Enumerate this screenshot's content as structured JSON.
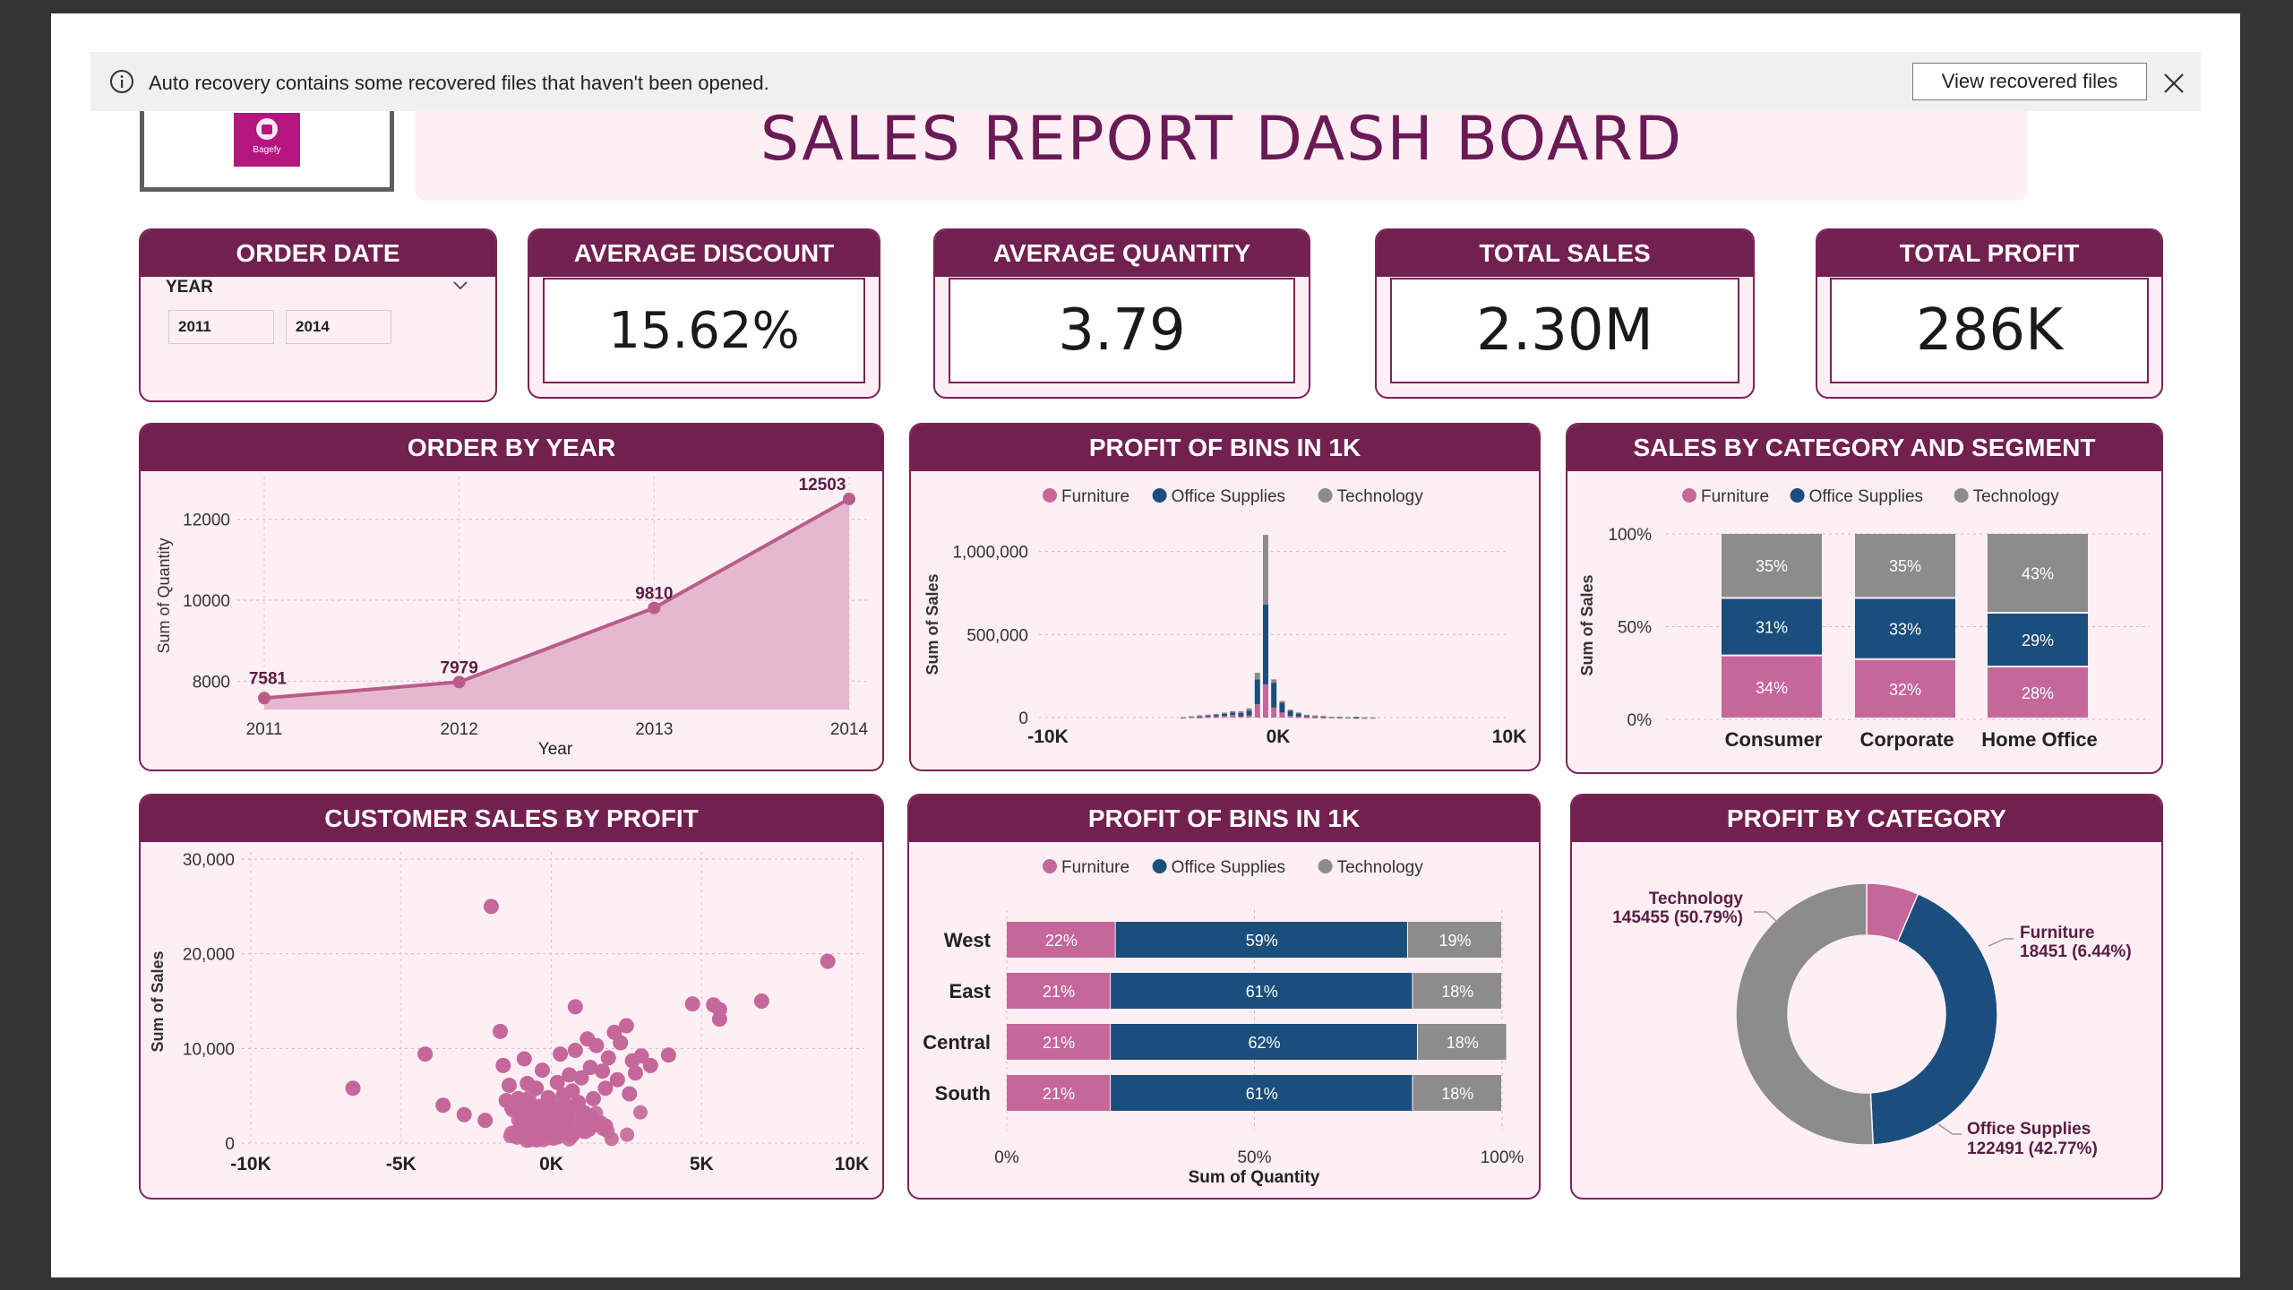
{
  "notification": {
    "message": "Auto recovery contains some recovered files that haven't been opened.",
    "button_label": "View recovered files",
    "info_icon": "info-icon",
    "close_icon": "close-icon"
  },
  "logo": {
    "text": "Bagefy"
  },
  "title": "SALES REPORT DASH BOARD",
  "order_date": {
    "header": "ORDER DATE",
    "label": "YEAR",
    "from": "2011",
    "to": "2014"
  },
  "kpis": {
    "avg_discount": {
      "header": "AVERAGE DISCOUNT",
      "value": "15.62%"
    },
    "avg_quantity": {
      "header": "AVERAGE QUANTITY",
      "value": "3.79"
    },
    "total_sales": {
      "header": "TOTAL SALES",
      "value": "2.30M"
    },
    "total_profit": {
      "header": "TOTAL PROFIT",
      "value": "286K"
    }
  },
  "legend": [
    "Furniture",
    "Office Supplies",
    "Technology"
  ],
  "colors": {
    "furniture": "#c5679a",
    "office": "#1a4e7c",
    "technology": "#8c8c8c",
    "header": "#72204f",
    "panel": "#fdeff3"
  },
  "chart_data": [
    {
      "type": "area",
      "title": "ORDER BY YEAR",
      "xlabel": "Year",
      "ylabel": "Sum of Quantity",
      "x": [
        "2011",
        "2012",
        "2013",
        "2014"
      ],
      "values": [
        7581,
        7979,
        9810,
        12503
      ],
      "labels": [
        "7581",
        "7979",
        "9810",
        "12503"
      ],
      "ylim": [
        7300,
        12700
      ],
      "yticks": [
        8000,
        10000,
        12000
      ],
      "ytick_labels": [
        "8000",
        "10000",
        "12000"
      ]
    },
    {
      "type": "bar",
      "title": "PROFIT OF BINS IN 1K",
      "ylabel": "Sum of Sales",
      "ylim": [
        0,
        1300000
      ],
      "yticks": [
        0,
        500000,
        1000000
      ],
      "ytick_labels": [
        "0",
        "500,000",
        "1,000,000"
      ],
      "xtick_labels": [
        "-10K",
        "0K",
        "10K"
      ],
      "series": [
        {
          "name": "Furniture",
          "values": [
            0,
            0,
            3000,
            5000,
            6000,
            10000,
            15000,
            8000,
            12000,
            80000,
            200000,
            60000,
            30000,
            10000,
            6000,
            4000,
            3000,
            2000,
            0,
            2000,
            0,
            1000,
            0,
            0
          ]
        },
        {
          "name": "Office Supplies",
          "values": [
            2000,
            6000,
            8000,
            10000,
            12000,
            14000,
            16000,
            20000,
            30000,
            150000,
            480000,
            150000,
            60000,
            30000,
            20000,
            10000,
            8000,
            6000,
            4000,
            3000,
            2000,
            2000,
            1000,
            0
          ]
        },
        {
          "name": "Technology",
          "values": [
            1000,
            2000,
            3000,
            3000,
            4000,
            6000,
            8000,
            10000,
            14000,
            40000,
            420000,
            20000,
            10000,
            8000,
            5000,
            3000,
            2000,
            2000,
            1000,
            1000,
            1000,
            0,
            1000,
            1000
          ]
        }
      ]
    },
    {
      "type": "bar",
      "title": "SALES BY CATEGORY AND SEGMENT",
      "ylabel": "Sum of Sales",
      "ytick_labels": [
        "0%",
        "50%",
        "100%"
      ],
      "categories": [
        "Consumer",
        "Corporate",
        "Home Office"
      ],
      "series": [
        {
          "name": "Furniture",
          "values": [
            34,
            32,
            28
          ]
        },
        {
          "name": "Office Supplies",
          "values": [
            31,
            33,
            29
          ]
        },
        {
          "name": "Technology",
          "values": [
            35,
            35,
            43
          ]
        }
      ],
      "labels": {
        "Furniture": [
          "34%",
          "32%",
          "28%"
        ],
        "Office Supplies": [
          "31%",
          "33%",
          "29%"
        ],
        "Technology": [
          "35%",
          "35%",
          "43%"
        ]
      }
    },
    {
      "type": "scatter",
      "title": "CUSTOMER SALES BY PROFIT",
      "ylabel": "Sum of Sales",
      "ylim": [
        0,
        30000
      ],
      "xlim": [
        -10000,
        10000
      ],
      "yticks": [
        0,
        10000,
        20000,
        30000
      ],
      "ytick_labels": [
        "0",
        "10,000",
        "20,000",
        "30,000"
      ],
      "xtick_labels": [
        "-10K",
        "-5K",
        "0K",
        "5K",
        "10K"
      ],
      "points": [
        [
          -6600,
          5800
        ],
        [
          -2000,
          25000
        ],
        [
          -4200,
          9400
        ],
        [
          -3600,
          4000
        ],
        [
          -2900,
          3000
        ],
        [
          -2200,
          2400
        ],
        [
          -1700,
          11800
        ],
        [
          -1600,
          8200
        ],
        [
          -1400,
          6100
        ],
        [
          -1100,
          4700
        ],
        [
          -900,
          8900
        ],
        [
          -700,
          3600
        ],
        [
          -500,
          5800
        ],
        [
          -300,
          7700
        ],
        [
          -100,
          4800
        ],
        [
          0,
          2100
        ],
        [
          100,
          3400
        ],
        [
          200,
          6400
        ],
        [
          300,
          9400
        ],
        [
          400,
          5100
        ],
        [
          600,
          7200
        ],
        [
          800,
          9800
        ],
        [
          900,
          4300
        ],
        [
          1000,
          6900
        ],
        [
          1200,
          11000
        ],
        [
          1300,
          8000
        ],
        [
          1500,
          10300
        ],
        [
          1700,
          7600
        ],
        [
          1900,
          9000
        ],
        [
          2100,
          11700
        ],
        [
          2300,
          10600
        ],
        [
          2500,
          12400
        ],
        [
          2700,
          8700
        ],
        [
          2800,
          7400
        ],
        [
          3000,
          9200
        ],
        [
          3300,
          8200
        ],
        [
          3900,
          9300
        ],
        [
          4700,
          14700
        ],
        [
          5400,
          14600
        ],
        [
          5600,
          14100
        ],
        [
          5600,
          13100
        ],
        [
          7000,
          15000
        ],
        [
          9200,
          19200
        ],
        [
          800,
          14400
        ],
        [
          -1500,
          4500
        ],
        [
          -800,
          6300
        ],
        [
          200,
          3000
        ],
        [
          500,
          4000
        ],
        [
          700,
          5500
        ],
        [
          1100,
          3200
        ],
        [
          -200,
          1500
        ],
        [
          -400,
          2600
        ],
        [
          1400,
          4700
        ],
        [
          1800,
          5800
        ],
        [
          2200,
          6700
        ],
        [
          2600,
          5200
        ]
      ]
    },
    {
      "type": "bar",
      "title": "PROFIT OF BINS IN 1K",
      "xlabel": "Sum of Quantity",
      "xtick_labels": [
        "0%",
        "50%",
        "100%"
      ],
      "categories": [
        "West",
        "East",
        "Central",
        "South"
      ],
      "series": [
        {
          "name": "Furniture",
          "values": [
            22,
            21,
            21,
            21
          ]
        },
        {
          "name": "Office Supplies",
          "values": [
            59,
            61,
            62,
            61
          ]
        },
        {
          "name": "Technology",
          "values": [
            19,
            18,
            18,
            18
          ]
        }
      ],
      "labels": {
        "Furniture": [
          "22%",
          "21%",
          "21%",
          "21%"
        ],
        "Office Supplies": [
          "59%",
          "61%",
          "62%",
          "61%"
        ],
        "Technology": [
          "19%",
          "18%",
          "18%",
          "18%"
        ]
      }
    },
    {
      "type": "pie",
      "title": "PROFIT BY CATEGORY",
      "slices": [
        {
          "name": "Furniture",
          "value": 18451,
          "label": "18451 (6.44%)"
        },
        {
          "name": "Office Supplies",
          "value": 122491,
          "label": "122491 (42.77%)"
        },
        {
          "name": "Technology",
          "value": 145455,
          "label": "145455 (50.79%)"
        }
      ]
    }
  ]
}
